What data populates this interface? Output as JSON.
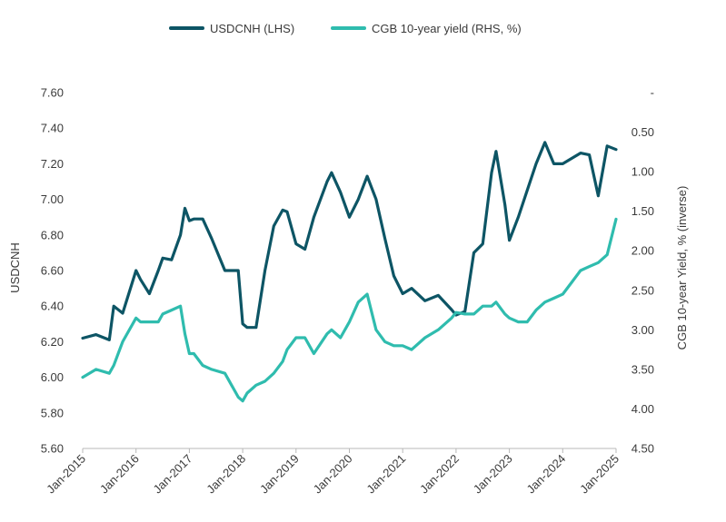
{
  "chart_data": {
    "type": "line",
    "title": "",
    "x": [
      "2015-01",
      "2015-04",
      "2015-07",
      "2015-08",
      "2015-10",
      "2016-01",
      "2016-02",
      "2016-04",
      "2016-06",
      "2016-07",
      "2016-09",
      "2016-11",
      "2016-12",
      "2017-01",
      "2017-02",
      "2017-04",
      "2017-06",
      "2017-09",
      "2017-12",
      "2018-01",
      "2018-02",
      "2018-04",
      "2018-06",
      "2018-08",
      "2018-10",
      "2018-11",
      "2019-01",
      "2019-03",
      "2019-05",
      "2019-08",
      "2019-09",
      "2019-11",
      "2020-01",
      "2020-03",
      "2020-05",
      "2020-07",
      "2020-09",
      "2020-11",
      "2021-01",
      "2021-03",
      "2021-06",
      "2021-09",
      "2021-12",
      "2022-01",
      "2022-03",
      "2022-05",
      "2022-07",
      "2022-09",
      "2022-10",
      "2022-12",
      "2023-01",
      "2023-03",
      "2023-05",
      "2023-07",
      "2023-09",
      "2023-11",
      "2024-01",
      "2024-03",
      "2024-05",
      "2024-07",
      "2024-09",
      "2024-11",
      "2025-01"
    ],
    "series": [
      {
        "name": "USDCNH (LHS)",
        "axis": "left",
        "color": "#0d5565",
        "values": [
          6.22,
          6.24,
          6.21,
          6.4,
          6.36,
          6.6,
          6.55,
          6.47,
          6.6,
          6.67,
          6.66,
          6.8,
          6.95,
          6.88,
          6.89,
          6.89,
          6.78,
          6.6,
          6.6,
          6.3,
          6.28,
          6.28,
          6.6,
          6.85,
          6.94,
          6.93,
          6.75,
          6.72,
          6.9,
          7.1,
          7.15,
          7.04,
          6.9,
          7.0,
          7.13,
          7.0,
          6.78,
          6.57,
          6.47,
          6.5,
          6.43,
          6.46,
          6.38,
          6.35,
          6.37,
          6.7,
          6.75,
          7.15,
          7.27,
          6.97,
          6.77,
          6.9,
          7.05,
          7.2,
          7.32,
          7.2,
          7.2,
          7.23,
          7.26,
          7.25,
          7.02,
          7.3,
          7.28
        ]
      },
      {
        "name": "CGB 10-year yield (RHS, %)",
        "axis": "right",
        "color": "#2fbcae",
        "values": [
          3.6,
          3.5,
          3.55,
          3.45,
          3.15,
          2.85,
          2.9,
          2.9,
          2.9,
          2.8,
          2.75,
          2.7,
          3.05,
          3.3,
          3.3,
          3.45,
          3.5,
          3.55,
          3.85,
          3.9,
          3.8,
          3.7,
          3.65,
          3.55,
          3.4,
          3.25,
          3.1,
          3.1,
          3.3,
          3.05,
          3.0,
          3.1,
          2.9,
          2.65,
          2.55,
          3.0,
          3.15,
          3.2,
          3.2,
          3.25,
          3.1,
          3.0,
          2.85,
          2.78,
          2.8,
          2.8,
          2.7,
          2.7,
          2.65,
          2.8,
          2.85,
          2.9,
          2.9,
          2.75,
          2.65,
          2.6,
          2.55,
          2.4,
          2.25,
          2.2,
          2.15,
          2.05,
          1.6
        ]
      }
    ],
    "left_axis": {
      "title": "USDCNH",
      "ylim": [
        5.6,
        7.6
      ],
      "ticks": [
        5.6,
        5.8,
        6.0,
        6.2,
        6.4,
        6.6,
        6.8,
        7.0,
        7.2,
        7.4,
        7.6
      ],
      "tick_labels": [
        "5.60",
        "5.80",
        "6.00",
        "6.20",
        "6.40",
        "6.60",
        "6.80",
        "7.00",
        "7.20",
        "7.40",
        "7.60"
      ]
    },
    "right_axis": {
      "title": "CGB 10-year Yield, % (inverse)",
      "inverted": true,
      "ylim": [
        0.0,
        4.5
      ],
      "ticks": [
        0.0,
        0.5,
        1.0,
        1.5,
        2.0,
        2.5,
        3.0,
        3.5,
        4.0,
        4.5
      ],
      "tick_labels": [
        "-",
        "0.50",
        "1.00",
        "1.50",
        "2.00",
        "2.50",
        "3.00",
        "3.50",
        "4.00",
        "4.50"
      ]
    },
    "x_axis": {
      "xlabel": "",
      "tick_labels": [
        "Jan-2015",
        "Jan-2016",
        "Jan-2017",
        "Jan-2018",
        "Jan-2019",
        "Jan-2020",
        "Jan-2021",
        "Jan-2022",
        "Jan-2023",
        "Jan-2024",
        "Jan-2025"
      ],
      "xlim": [
        "2015-01",
        "2025-01"
      ]
    },
    "legend": {
      "placement": "top-center",
      "entries": [
        "USDCNH (LHS)",
        "CGB 10-year yield (RHS, %)"
      ]
    },
    "grid": false
  }
}
